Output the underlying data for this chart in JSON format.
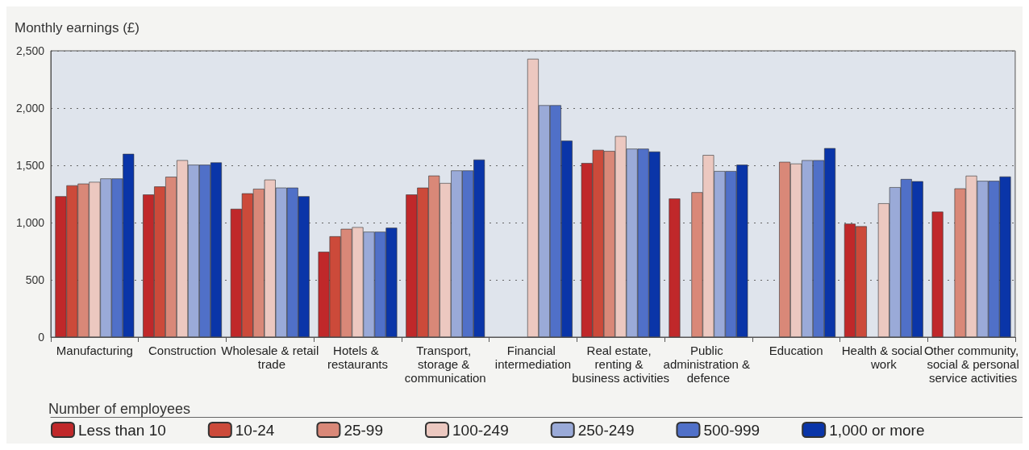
{
  "chart_data": {
    "type": "bar",
    "ylabel": "Monthly earnings (£)",
    "legend_title": "Number of employees",
    "categories": [
      "Manufacturing",
      "Construction",
      "Wholesale & retail trade",
      "Hotels & restaurants",
      "Transport, storage & communication",
      "Financial intermediation",
      "Real estate, renting & business activities",
      "Public administration & defence",
      "Education",
      "Health & social work",
      "Other community, social & personal service activities"
    ],
    "series": [
      {
        "name": "Less than 10",
        "color": "#c0282a",
        "values": [
          1230,
          1245,
          1120,
          745,
          1245,
          null,
          1520,
          1210,
          null,
          990,
          1095
        ]
      },
      {
        "name": "10-24",
        "color": "#cc4a3a",
        "values": [
          1325,
          1315,
          1255,
          880,
          1305,
          null,
          1635,
          null,
          null,
          968,
          null
        ]
      },
      {
        "name": "25-99",
        "color": "#d98878",
        "values": [
          1340,
          1400,
          1295,
          945,
          1410,
          null,
          1625,
          1265,
          1530,
          null,
          1298
        ]
      },
      {
        "name": "100-249",
        "color": "#ecc8c0",
        "values": [
          1355,
          1545,
          1375,
          960,
          1345,
          2430,
          1755,
          1590,
          1515,
          1168,
          1409
        ]
      },
      {
        "name": "250-249",
        "color": "#9aaad8",
        "values": [
          1385,
          1505,
          1305,
          920,
          1455,
          2025,
          1645,
          1450,
          1545,
          1309,
          1364
        ]
      },
      {
        "name": "500-999",
        "color": "#5070c8",
        "values": [
          1385,
          1505,
          1305,
          920,
          1455,
          2025,
          1645,
          1450,
          1545,
          1380,
          1364
        ]
      },
      {
        "name": "1,000 or more",
        "color": "#0a35a8",
        "values": [
          1600,
          1525,
          1230,
          955,
          1550,
          1715,
          1620,
          1505,
          1650,
          1361,
          1402
        ]
      }
    ],
    "ylim": [
      0,
      2500
    ],
    "yticks": [
      {
        "value": 0,
        "label": "0"
      },
      {
        "value": 500,
        "label": "500"
      },
      {
        "value": 1000,
        "label": "1,000"
      },
      {
        "value": 1500,
        "label": "1,500"
      },
      {
        "value": 2000,
        "label": "2,000"
      },
      {
        "value": 2500,
        "label": "2,500"
      }
    ],
    "grid": "y",
    "legend": "bottom"
  }
}
